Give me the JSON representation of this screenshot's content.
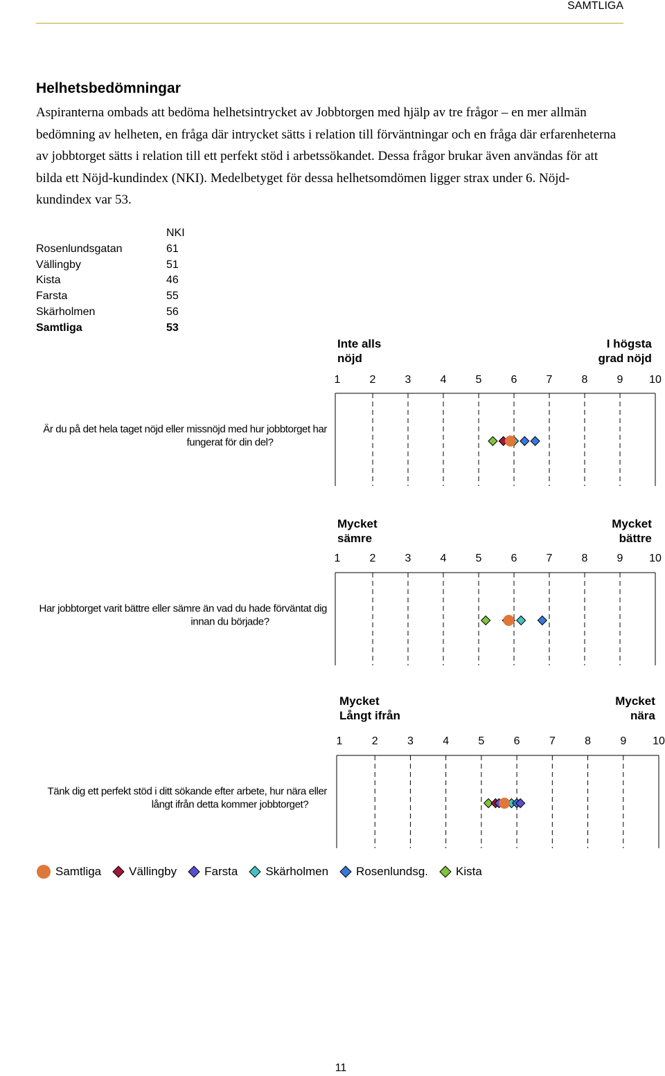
{
  "header": {
    "section": "SAMTLIGA"
  },
  "page": {
    "heading": "Helhetsbedömningar",
    "intro": "Aspiranterna ombads att bedöma helhetsintrycket av Jobbtorgen med hjälp av tre frågor – en mer allmän bedömning av helheten, en fråga där intrycket sätts i relation till förväntningar och en fråga där erfarenheterna av jobbtorget sätts i relation till ett perfekt stöd i arbetssökandet. Dessa frågor brukar även användas för att bilda ett Nöjd-kundindex (NKI). Medelbetyget för dessa helhetsomdömen ligger strax under 6. Nöjd-kundindex var 53.",
    "page_number": "11"
  },
  "nki_table": {
    "header": "NKI",
    "rows": [
      {
        "name": "Rosenlundsgatan",
        "value": "61"
      },
      {
        "name": "Vällingby",
        "value": "51"
      },
      {
        "name": "Kista",
        "value": "46"
      },
      {
        "name": "Farsta",
        "value": "55"
      },
      {
        "name": "Skärholmen",
        "value": "56"
      }
    ],
    "total": {
      "name": "Samtliga",
      "value": "53"
    }
  },
  "colors": {
    "samtliga": "#e0773a",
    "vallingby": "#a0173a",
    "farsta": "#5a4fd0",
    "skarholmen": "#48c0c0",
    "rosenlundsg": "#3a78d8",
    "kista": "#7fc43c"
  },
  "chart_data": [
    {
      "type": "scatter",
      "question": "Är du på det hela taget nöjd eller missnöjd med hur jobbtorget har fungerat för din del?",
      "scale_low": "Inte alls\nnöjd",
      "scale_high": "I högsta\ngrad nöjd",
      "ticks": [
        1,
        2,
        3,
        4,
        5,
        6,
        7,
        8,
        9,
        10
      ],
      "xlim": [
        1,
        10
      ],
      "points": [
        {
          "series": "Kista",
          "x": 5.4
        },
        {
          "series": "Vällingby",
          "x": 5.7
        },
        {
          "series": "Farsta",
          "x": 5.9
        },
        {
          "series": "Samtliga",
          "x": 5.9
        },
        {
          "series": "Skärholmen",
          "x": 6.0
        },
        {
          "series": "Rosenlundsg.",
          "x": 6.3
        },
        {
          "series": "Rosenlundsg.",
          "x": 6.6
        }
      ]
    },
    {
      "type": "scatter",
      "question": "Har jobbtorget varit bättre eller sämre än vad du hade förväntat dig innan du började?",
      "scale_low": "Mycket\nsämre",
      "scale_high": "Mycket\nbättre",
      "ticks": [
        1,
        2,
        3,
        4,
        5,
        6,
        7,
        8,
        9,
        10
      ],
      "xlim": [
        1,
        10
      ],
      "points": [
        {
          "series": "Kista",
          "x": 5.2
        },
        {
          "series": "Vällingby",
          "x": 5.8
        },
        {
          "series": "Farsta",
          "x": 5.9
        },
        {
          "series": "Samtliga",
          "x": 5.85
        },
        {
          "series": "Skärholmen",
          "x": 6.2
        },
        {
          "series": "Rosenlundsg.",
          "x": 6.8
        }
      ]
    },
    {
      "type": "scatter",
      "question": "Tänk dig ett perfekt stöd i ditt sökande efter arbete, hur nära eller långt ifrån detta kommer jobbtorget?",
      "scale_low": "Mycket\nLångt ifrån",
      "scale_high": "Mycket\nnära",
      "ticks": [
        1,
        2,
        3,
        4,
        5,
        6,
        7,
        8,
        9,
        10
      ],
      "xlim": [
        1,
        10
      ],
      "points": [
        {
          "series": "Kista",
          "x": 5.2
        },
        {
          "series": "Vällingby",
          "x": 5.4
        },
        {
          "series": "Farsta",
          "x": 5.5
        },
        {
          "series": "Samtliga",
          "x": 5.65
        },
        {
          "series": "Skärholmen",
          "x": 5.85
        },
        {
          "series": "Rosenlundsg.",
          "x": 6.0
        },
        {
          "series": "Farsta",
          "x": 6.1
        }
      ]
    }
  ],
  "legend": [
    {
      "label": "Samtliga",
      "shape": "circle",
      "color_key": "samtliga"
    },
    {
      "label": "Vällingby",
      "shape": "diamond",
      "color_key": "vallingby"
    },
    {
      "label": "Farsta",
      "shape": "diamond",
      "color_key": "farsta"
    },
    {
      "label": "Skärholmen",
      "shape": "diamond",
      "color_key": "skarholmen"
    },
    {
      "label": "Rosenlundsg.",
      "shape": "diamond",
      "color_key": "rosenlundsg"
    },
    {
      "label": "Kista",
      "shape": "diamond",
      "color_key": "kista"
    }
  ]
}
